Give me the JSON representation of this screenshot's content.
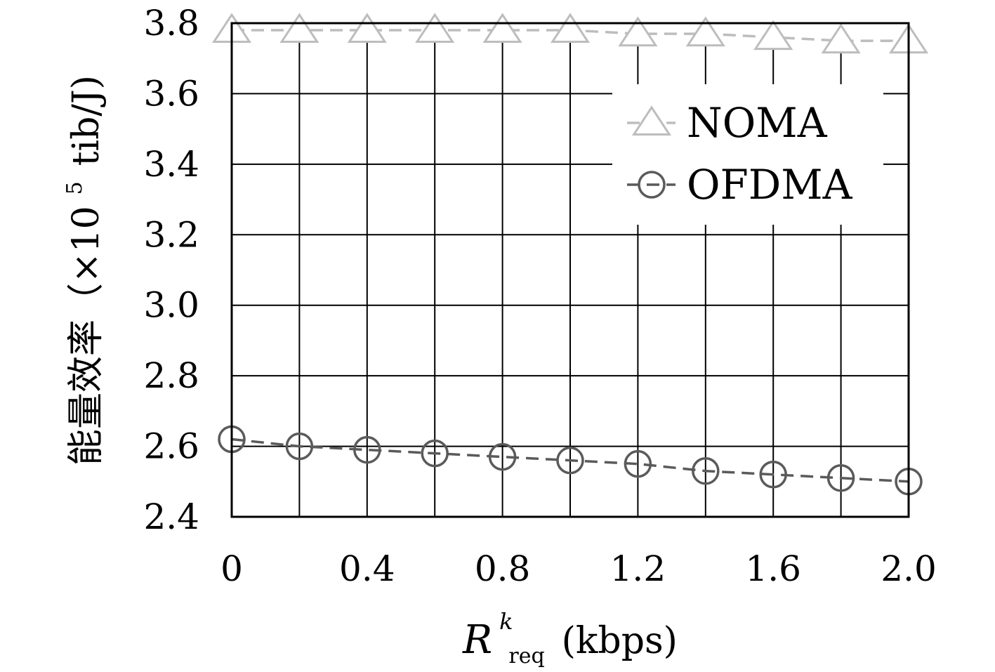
{
  "chart_data": {
    "type": "line",
    "x": [
      0,
      0.2,
      0.4,
      0.6,
      0.8,
      1.0,
      1.2,
      1.4,
      1.6,
      1.8,
      2.0
    ],
    "xlim": [
      0,
      2.0
    ],
    "ylim": [
      2.4,
      3.8
    ],
    "xticks": [
      "0",
      "0.4",
      "0.8",
      "1.2",
      "1.6",
      "2.0"
    ],
    "xtick_values": [
      0,
      0.4,
      0.8,
      1.2,
      1.6,
      2.0
    ],
    "yticks": [
      "2.4",
      "2.6",
      "2.8",
      "3.0",
      "3.2",
      "3.4",
      "3.6",
      "3.8"
    ],
    "ytick_values": [
      2.4,
      2.6,
      2.8,
      3.0,
      3.2,
      3.4,
      3.6,
      3.8
    ],
    "xlabel_main": "R",
    "xlabel_sup": "k",
    "xlabel_sub": "req",
    "xlabel_unit": "(kbps)",
    "ylabel_main": "能量效率（×10",
    "ylabel_sup": "5",
    "ylabel_unit": "tib/J)",
    "grid": true,
    "legend_position": "top-right",
    "series": [
      {
        "name": "NOMA",
        "marker": "triangle",
        "color": "#bdbdbd",
        "values": [
          3.78,
          3.78,
          3.78,
          3.78,
          3.78,
          3.78,
          3.77,
          3.77,
          3.76,
          3.75,
          3.75
        ]
      },
      {
        "name": "OFDMA",
        "marker": "circle",
        "color": "#5a5a5a",
        "values": [
          2.62,
          2.6,
          2.59,
          2.58,
          2.57,
          2.56,
          2.55,
          2.53,
          2.52,
          2.51,
          2.5
        ]
      }
    ]
  }
}
